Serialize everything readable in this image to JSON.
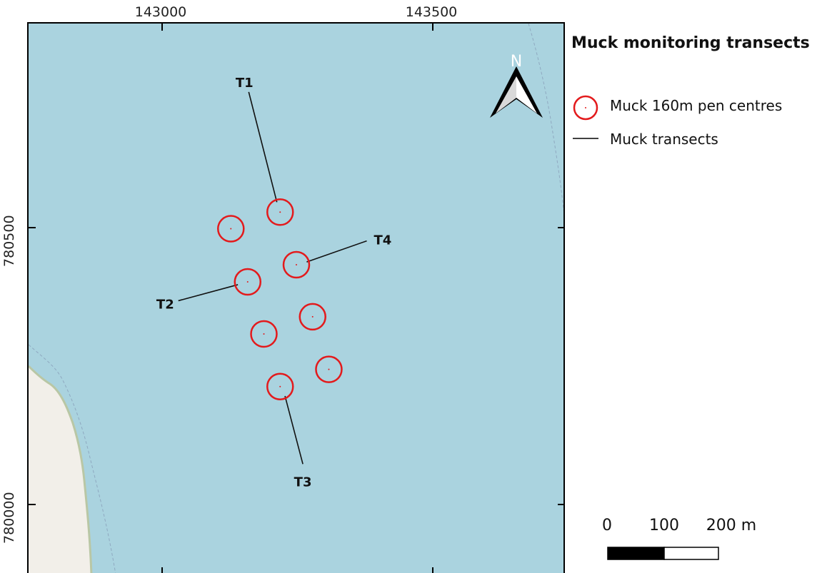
{
  "axes": {
    "x_ticks": [
      "143000",
      "143500"
    ],
    "y_ticks": [
      "780500",
      "780000"
    ]
  },
  "map": {
    "water_color": "#aad3df",
    "land_color": "#f2efe9",
    "coast_color": "#b9c7a5",
    "north_label": "N",
    "pens": [
      {
        "x": 143218,
        "y": 780528
      },
      {
        "x": 143127,
        "y": 780498
      },
      {
        "x": 143248,
        "y": 780433
      },
      {
        "x": 143158,
        "y": 780402
      },
      {
        "x": 143278,
        "y": 780339
      },
      {
        "x": 143188,
        "y": 780308
      },
      {
        "x": 143308,
        "y": 780244
      },
      {
        "x": 143218,
        "y": 780213
      }
    ],
    "pen_color": "#e31a1c",
    "transects": [
      {
        "label": "T1",
        "from": {
          "x": 143160,
          "y": 780745
        },
        "to": {
          "x": 143212,
          "y": 780546
        }
      },
      {
        "label": "T2",
        "from": {
          "x": 143030,
          "y": 780368
        },
        "to": {
          "x": 143140,
          "y": 780397
        }
      },
      {
        "label": "T3",
        "from": {
          "x": 143227,
          "y": 780196
        },
        "to": {
          "x": 143260,
          "y": 780073
        }
      },
      {
        "label": "T4",
        "from": {
          "x": 143267,
          "y": 780438
        },
        "to": {
          "x": 143378,
          "y": 780476
        }
      }
    ]
  },
  "legend": {
    "title": "Muck monitoring transects",
    "items": [
      {
        "label": "Muck 160m pen centres",
        "symbol": "red-circle"
      },
      {
        "label": "Muck transects",
        "symbol": "black-line"
      }
    ]
  },
  "scalebar": {
    "labels": [
      "0",
      "100",
      "200 m"
    ],
    "unit": "m"
  }
}
